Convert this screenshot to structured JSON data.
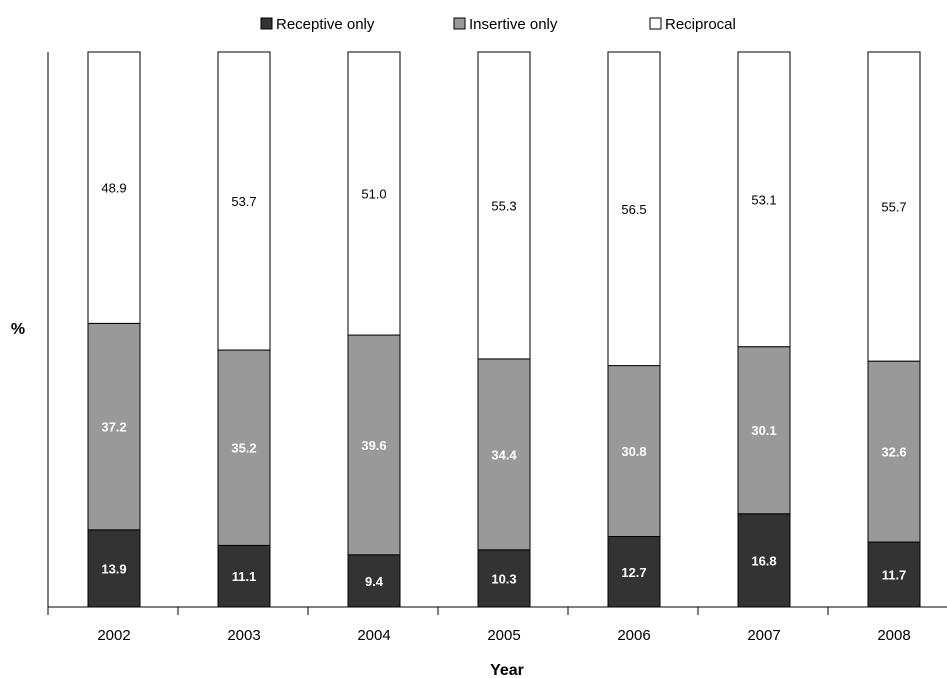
{
  "chart_data": {
    "type": "bar",
    "stacked": true,
    "categories": [
      "2002",
      "2003",
      "2004",
      "2005",
      "2006",
      "2007",
      "2008"
    ],
    "series": [
      {
        "name": "Receptive only",
        "color": "#333333",
        "values": [
          13.9,
          11.1,
          9.4,
          10.3,
          12.7,
          16.8,
          11.7
        ]
      },
      {
        "name": "Insertive only",
        "color": "#999999",
        "values": [
          37.2,
          35.2,
          39.6,
          34.4,
          30.8,
          30.1,
          32.6
        ]
      },
      {
        "name": "Reciprocal",
        "color": "#ffffff",
        "values": [
          48.9,
          53.7,
          51.0,
          55.3,
          56.5,
          53.1,
          55.7
        ]
      }
    ],
    "xlabel": "Year",
    "ylabel": "%",
    "ylim": [
      0,
      100
    ],
    "grid": false,
    "legend": "top-center"
  }
}
